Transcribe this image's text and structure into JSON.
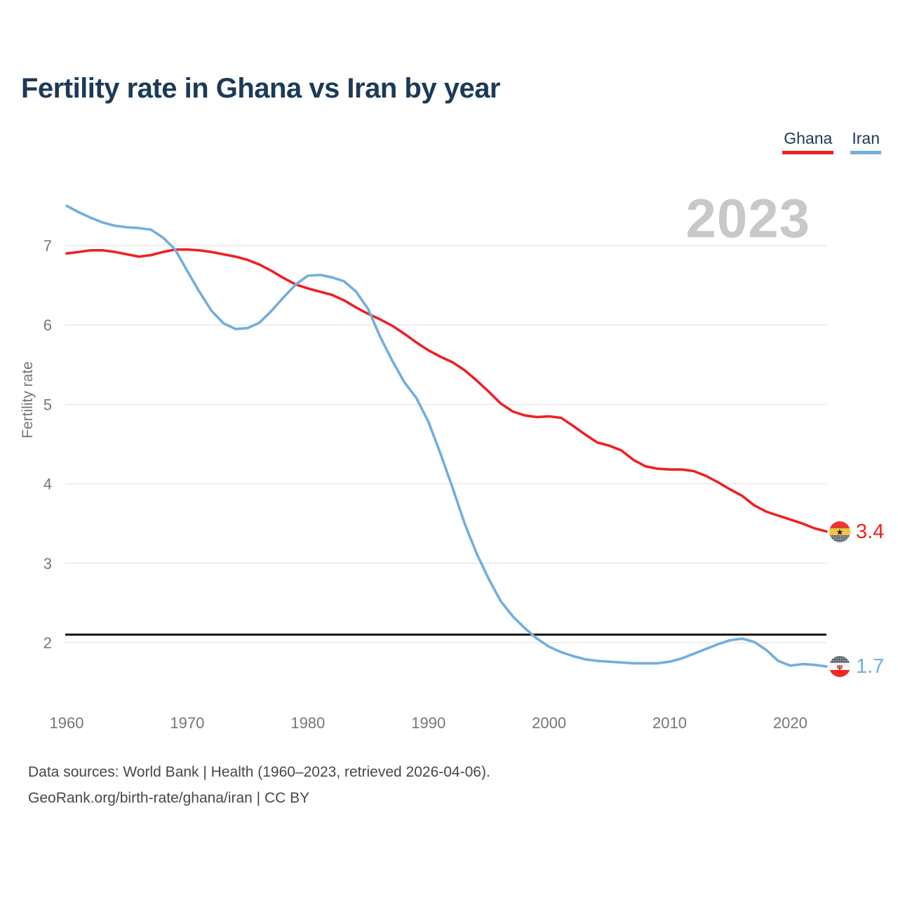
{
  "title": "Fertility rate in Ghana vs Iran by year",
  "watermark": "2023",
  "legend": [
    {
      "label": "Ghana",
      "color": "#ed2124"
    },
    {
      "label": "Iran",
      "color": "#72aede"
    }
  ],
  "chart_data": {
    "type": "line",
    "title": "Fertility rate in Ghana vs Iran by year",
    "xlabel": "",
    "ylabel": "Fertility rate",
    "xlim": [
      1960,
      2023
    ],
    "ylim": [
      1.55,
      7.6
    ],
    "xticks": [
      1960,
      1970,
      1980,
      1990,
      2000,
      2010,
      2020
    ],
    "yticks": [
      2,
      3,
      4,
      5,
      6,
      7
    ],
    "grid": "horizontal",
    "legend_position": "top-right",
    "replacement_line": {
      "value": 2.1,
      "color": "#141414"
    },
    "years": [
      1960,
      1961,
      1962,
      1963,
      1964,
      1965,
      1966,
      1967,
      1968,
      1969,
      1970,
      1971,
      1972,
      1973,
      1974,
      1975,
      1976,
      1977,
      1978,
      1979,
      1980,
      1981,
      1982,
      1983,
      1984,
      1985,
      1986,
      1987,
      1988,
      1989,
      1990,
      1991,
      1992,
      1993,
      1994,
      1995,
      1996,
      1997,
      1998,
      1999,
      2000,
      2001,
      2002,
      2003,
      2004,
      2005,
      2006,
      2007,
      2008,
      2009,
      2010,
      2011,
      2012,
      2013,
      2014,
      2015,
      2016,
      2017,
      2018,
      2019,
      2020,
      2021,
      2022,
      2023
    ],
    "series": [
      {
        "name": "Ghana",
        "color": "#ed2124",
        "end_label": "3.4",
        "end_year": 2023,
        "values": [
          6.9,
          6.92,
          6.94,
          6.94,
          6.92,
          6.89,
          6.86,
          6.88,
          6.92,
          6.95,
          6.95,
          6.94,
          6.92,
          6.89,
          6.86,
          6.82,
          6.76,
          6.68,
          6.59,
          6.51,
          6.46,
          6.42,
          6.38,
          6.31,
          6.22,
          6.14,
          6.07,
          5.99,
          5.89,
          5.78,
          5.68,
          5.6,
          5.53,
          5.43,
          5.3,
          5.16,
          5.01,
          4.91,
          4.86,
          4.84,
          4.85,
          4.83,
          4.73,
          4.62,
          4.52,
          4.48,
          4.42,
          4.3,
          4.22,
          4.19,
          4.18,
          4.18,
          4.16,
          4.1,
          4.02,
          3.93,
          3.85,
          3.73,
          3.65,
          3.6,
          3.55,
          3.5,
          3.44,
          3.4
        ]
      },
      {
        "name": "Iran",
        "color": "#72aede",
        "end_label": "1.7",
        "end_year": 2023,
        "values": [
          7.5,
          7.42,
          7.35,
          7.29,
          7.25,
          7.23,
          7.22,
          7.2,
          7.1,
          6.95,
          6.68,
          6.42,
          6.18,
          6.02,
          5.95,
          5.96,
          6.03,
          6.18,
          6.35,
          6.51,
          6.62,
          6.63,
          6.6,
          6.55,
          6.42,
          6.2,
          5.85,
          5.55,
          5.28,
          5.08,
          4.78,
          4.38,
          3.95,
          3.5,
          3.12,
          2.8,
          2.52,
          2.33,
          2.18,
          2.05,
          1.95,
          1.88,
          1.83,
          1.79,
          1.77,
          1.76,
          1.75,
          1.74,
          1.74,
          1.74,
          1.76,
          1.8,
          1.86,
          1.92,
          1.98,
          2.03,
          2.05,
          2.01,
          1.91,
          1.77,
          1.71,
          1.73,
          1.72,
          1.7
        ]
      }
    ]
  },
  "footer": {
    "line1": "Data sources: World Bank | Health (1960–2023, retrieved 2026-04-06).",
    "line2": "GeoRank.org/birth-rate/ghana/iran | CC BY"
  }
}
